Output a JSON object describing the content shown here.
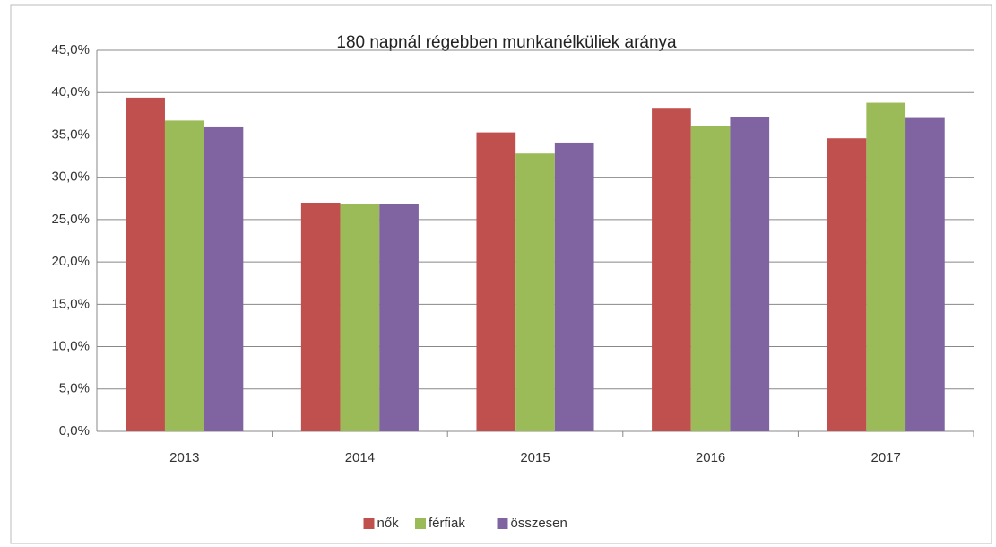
{
  "chart_data": {
    "type": "bar",
    "title": "180 napnál régebben munkanélküliek aránya",
    "categories": [
      "2013",
      "2014",
      "2015",
      "2016",
      "2017"
    ],
    "series": [
      {
        "name": "nők",
        "color": "#c0504d",
        "values": [
          39.4,
          27.0,
          35.3,
          38.2,
          34.6
        ]
      },
      {
        "name": "férfiak",
        "color": "#9bbb59",
        "values": [
          36.7,
          26.8,
          32.8,
          36.0,
          38.8
        ]
      },
      {
        "name": "összesen",
        "color": "#8064a2",
        "values": [
          35.9,
          26.8,
          34.1,
          37.1,
          37.0
        ]
      }
    ],
    "ylim": [
      0,
      45
    ],
    "yticks": [
      {
        "value": 0,
        "label": "0,0%"
      },
      {
        "value": 5,
        "label": "5,0%"
      },
      {
        "value": 10,
        "label": "10,0%"
      },
      {
        "value": 15,
        "label": "15,0%"
      },
      {
        "value": 20,
        "label": "20,0%"
      },
      {
        "value": 25,
        "label": "25,0%"
      },
      {
        "value": 30,
        "label": "30,0%"
      },
      {
        "value": 35,
        "label": "35,0%"
      },
      {
        "value": 40,
        "label": "40,0%"
      },
      {
        "value": 45,
        "label": "45,0%"
      }
    ],
    "grid": true,
    "legend": "bottom"
  }
}
